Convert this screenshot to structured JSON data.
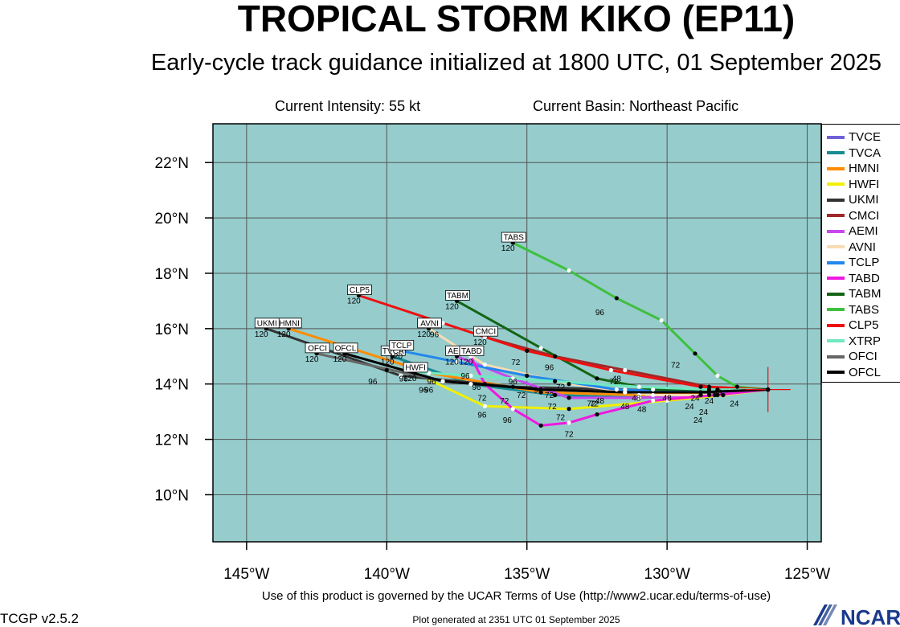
{
  "title": "TROPICAL STORM KIKO (EP11)",
  "subtitle": "Early-cycle track guidance initialized at 1800 UTC, 01 September 2025",
  "current_intensity": "Current Intensity: 55 kt",
  "current_basin": "Current Basin: Northeast Pacific",
  "terms": "Use of this product is governed by the UCAR Terms of Use (http://www2.ucar.edu/terms-of-use)",
  "generated": "Plot generated at 2351 UTC   01 September 2025",
  "version": "TCGP v2.5.2",
  "logo_text": "NCAR",
  "chart_data": {
    "type": "line",
    "x_unit": "longitude (°W negative)",
    "y_unit": "latitude (°N)",
    "xlim": [
      -146.2,
      -124.5
    ],
    "ylim": [
      8.3,
      23.4
    ],
    "xticks": [
      -145,
      -140,
      -135,
      -130,
      -125
    ],
    "xtick_labels": [
      "145°W",
      "140°W",
      "135°W",
      "130°W",
      "125°W"
    ],
    "yticks": [
      10,
      12,
      14,
      16,
      18,
      20,
      22
    ],
    "ytick_labels": [
      "10°N",
      "12°N",
      "14°N",
      "16°N",
      "18°N",
      "20°N",
      "22°N"
    ],
    "grid": true,
    "background_color": "#96cccc",
    "legend_placement": "right",
    "initial_position": [
      -126.4,
      13.8
    ],
    "series": [
      {
        "name": "TVCE",
        "color": "#7060d8",
        "points": [
          [
            -126.4,
            13.8
          ],
          [
            -128.8,
            13.6
          ],
          [
            -131.0,
            13.5
          ],
          [
            -134.0,
            13.6
          ],
          [
            -137.0,
            14.0
          ],
          [
            -139.8,
            15.0
          ]
        ],
        "hours": {
          "72": [
            -134.0,
            13.6
          ]
        }
      },
      {
        "name": "TVCA",
        "color": "#168c94",
        "points": [
          [
            -126.4,
            13.8
          ],
          [
            -128.8,
            13.6
          ],
          [
            -131.0,
            13.5
          ],
          [
            -134.0,
            13.6
          ],
          [
            -137.0,
            14.0
          ],
          [
            -139.8,
            15.0
          ]
        ],
        "end_label": "TVCA",
        "end_hour": "120"
      },
      {
        "name": "HMNI",
        "color": "#ff8c00",
        "points": [
          [
            -126.4,
            13.8
          ],
          [
            -128.5,
            13.7
          ],
          [
            -131.0,
            13.6
          ],
          [
            -134.5,
            13.7
          ],
          [
            -138.5,
            14.4
          ],
          [
            -143.5,
            16.0
          ]
        ],
        "end_label": "HMNI",
        "end_hour": "120"
      },
      {
        "name": "HWFI",
        "color": "#f0f000",
        "points": [
          [
            -126.4,
            13.8
          ],
          [
            -128.0,
            13.6
          ],
          [
            -130.0,
            13.4
          ],
          [
            -133.5,
            13.1
          ],
          [
            -136.5,
            13.2
          ],
          [
            -139.0,
            14.4
          ]
        ],
        "end_label": "HWFI",
        "end_hour": "120",
        "hour_labels": [
          [
            "72",
            -133.8,
            13.1
          ],
          [
            "96",
            -136.6,
            13.2
          ]
        ]
      },
      {
        "name": "UKMI",
        "color": "#333333",
        "points": [
          [
            -126.4,
            13.8
          ],
          [
            -128.8,
            13.7
          ],
          [
            -131.5,
            13.8
          ],
          [
            -135.5,
            13.9
          ],
          [
            -139.5,
            14.3
          ],
          [
            -144.3,
            16.0
          ]
        ],
        "end_label": "UKMI",
        "end_hour": "120",
        "hour_labels": [
          [
            "96",
            -138.5,
            14.1
          ]
        ]
      },
      {
        "name": "CMCI",
        "color": "#a02828",
        "points": [
          [
            -126.4,
            13.8
          ],
          [
            -128.5,
            13.9
          ],
          [
            -131.5,
            14.5
          ],
          [
            -134.0,
            15.0
          ],
          [
            -136.5,
            15.7
          ]
        ],
        "end_label": "CMCI",
        "end_hour": "120",
        "hour_labels": [
          [
            "72",
            -131.9,
            14.4
          ],
          [
            "96",
            -134.2,
            14.9
          ]
        ]
      },
      {
        "name": "AEMI",
        "color": "#c848f0",
        "points": [
          [
            -126.4,
            13.8
          ],
          [
            -128.5,
            13.6
          ],
          [
            -131.0,
            13.5
          ],
          [
            -133.5,
            13.5
          ],
          [
            -135.5,
            14.2
          ],
          [
            -137.5,
            15.0
          ]
        ],
        "end_label": "AEMI",
        "end_hour": "120"
      },
      {
        "name": "AVNI",
        "color": "#f8dcb4",
        "points": [
          [
            -126.4,
            13.8
          ],
          [
            -128.2,
            13.6
          ],
          [
            -130.5,
            13.6
          ],
          [
            -133.5,
            14.0
          ],
          [
            -136.5,
            14.7
          ],
          [
            -138.5,
            16.0
          ]
        ],
        "end_label": "AVNI",
        "end_hour": "120",
        "hour_labels": [
          [
            "72",
            -132.7,
            13.6
          ],
          [
            "96",
            -135.5,
            14.4
          ]
        ]
      },
      {
        "name": "TCLP",
        "color": "#2088ee",
        "points": [
          [
            -126.4,
            13.8
          ],
          [
            -128.8,
            13.7
          ],
          [
            -131.8,
            13.8
          ],
          [
            -135.0,
            14.3
          ],
          [
            -137.5,
            14.8
          ],
          [
            -139.5,
            15.2
          ]
        ],
        "end_label": "TCLP",
        "end_hour": "120"
      },
      {
        "name": "TABD",
        "color": "#f018e0",
        "points": [
          [
            -126.4,
            13.8
          ],
          [
            -128.3,
            13.6
          ],
          [
            -130.5,
            13.4
          ],
          [
            -132.5,
            12.9
          ],
          [
            -133.5,
            12.6
          ],
          [
            -134.5,
            12.5
          ],
          [
            -135.5,
            13.1
          ],
          [
            -136.5,
            14.0
          ],
          [
            -137.0,
            15.0
          ]
        ],
        "end_label": "TABD",
        "end_hour": "120",
        "hour_labels": [
          [
            "72",
            -133.5,
            12.5
          ],
          [
            "96",
            -135.7,
            13.0
          ]
        ]
      },
      {
        "name": "TABM",
        "color": "#146414",
        "points": [
          [
            -126.4,
            13.8
          ],
          [
            -128.2,
            13.8
          ],
          [
            -130.5,
            13.8
          ],
          [
            -132.5,
            14.2
          ],
          [
            -134.5,
            15.3
          ],
          [
            -137.5,
            17.0
          ]
        ],
        "end_label": "TABM",
        "end_hour": "120",
        "hour_labels": [
          [
            "48",
            -131.1,
            13.8
          ],
          [
            "72",
            -133.8,
            14.2
          ]
        ]
      },
      {
        "name": "TABS",
        "color": "#3ec03e",
        "points": [
          [
            -126.4,
            13.8
          ],
          [
            -127.5,
            13.9
          ],
          [
            -128.2,
            14.3
          ],
          [
            -129.0,
            15.1
          ],
          [
            -130.2,
            16.3
          ],
          [
            -131.8,
            17.1
          ],
          [
            -133.5,
            18.1
          ],
          [
            -135.5,
            19.1
          ]
        ],
        "end_label": "TABS",
        "end_hour": "120",
        "hour_labels": [
          [
            "72",
            -129.7,
            15.0
          ],
          [
            "96",
            -132.4,
            16.9
          ]
        ]
      },
      {
        "name": "CLP5",
        "color": "#ee1010",
        "points": [
          [
            -126.4,
            13.8
          ],
          [
            -128.8,
            13.9
          ],
          [
            -132.0,
            14.5
          ],
          [
            -135.0,
            15.2
          ],
          [
            -138.0,
            16.2
          ],
          [
            -141.0,
            17.2
          ]
        ],
        "end_label": "CLP5",
        "end_hour": "120",
        "hour_labels": [
          [
            "72",
            -135.4,
            15.1
          ],
          [
            "96",
            -138.3,
            16.1
          ]
        ]
      },
      {
        "name": "XTRP",
        "color": "#70e8c0",
        "points": [
          [
            -126.4,
            13.8
          ],
          [
            -128.5,
            13.8
          ],
          [
            -131.0,
            13.9
          ],
          [
            -134.0,
            14.1
          ],
          [
            -137.0,
            14.3
          ],
          [
            -140.0,
            14.5
          ]
        ]
      },
      {
        "name": "OFCI",
        "color": "#666666",
        "points": [
          [
            -126.4,
            13.8
          ],
          [
            -128.8,
            13.7
          ],
          [
            -131.5,
            13.7
          ],
          [
            -134.5,
            13.8
          ],
          [
            -138.0,
            14.1
          ],
          [
            -142.5,
            15.1
          ]
        ],
        "end_label": "OFCI",
        "end_hour": "120",
        "hour_labels": [
          [
            "96",
            -139.4,
            14.5
          ]
        ]
      },
      {
        "name": "OFCL",
        "color": "#000000",
        "points": [
          [
            -126.4,
            13.8
          ],
          [
            -128.8,
            13.7
          ],
          [
            -131.5,
            13.7
          ],
          [
            -134.5,
            13.8
          ],
          [
            -138.0,
            14.1
          ],
          [
            -141.5,
            15.1
          ]
        ],
        "end_label": "OFCL",
        "end_hour": "120",
        "hour_labels": [
          [
            "96",
            -140.5,
            14.4
          ]
        ]
      }
    ],
    "extra_hour_labels": [
      [
        "24",
        -128.7,
        13.3
      ],
      [
        "24",
        -129.2,
        13.5
      ],
      [
        "24",
        -127.6,
        13.6
      ],
      [
        "24",
        -128.5,
        13.7
      ],
      [
        "24",
        -129.0,
        13.8
      ],
      [
        "24",
        -128.9,
        13.0
      ],
      [
        "48",
        -128.2,
        14.0
      ],
      [
        "48",
        -130.9,
        13.4
      ],
      [
        "48",
        -131.5,
        13.5
      ],
      [
        "48",
        -130.0,
        13.8
      ],
      [
        "48",
        -132.4,
        13.7
      ],
      [
        "48",
        -131.8,
        14.5
      ],
      [
        "72",
        -132.6,
        13.6
      ],
      [
        "72",
        -134.2,
        13.9
      ],
      [
        "72",
        -134.1,
        13.5
      ],
      [
        "72",
        -136.6,
        13.8
      ],
      [
        "72",
        -135.8,
        13.7
      ],
      [
        "72",
        -135.2,
        13.9
      ],
      [
        "96",
        -136.8,
        14.2
      ],
      [
        "96",
        -137.2,
        14.6
      ],
      [
        "96",
        -138.4,
        14.4
      ],
      [
        "96",
        -138.7,
        14.1
      ],
      [
        "96",
        -134.6,
        14.1
      ]
    ]
  }
}
